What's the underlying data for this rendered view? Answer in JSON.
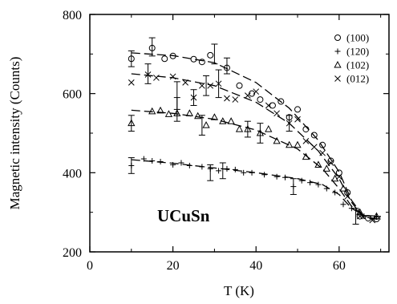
{
  "chart_data": {
    "type": "scatter",
    "title": "",
    "xlabel": "T (K)",
    "ylabel": "Magnetic intensity (Counts)",
    "xlim": [
      0,
      72
    ],
    "ylim": [
      200,
      800
    ],
    "xticks": [
      0,
      20,
      40,
      60
    ],
    "yticks": [
      200,
      400,
      600,
      800
    ],
    "grid": false,
    "legend_position": "top-right",
    "annotation": "UCuSn",
    "series": [
      {
        "name": "(100)",
        "marker": "circle",
        "points": [
          [
            10,
            688
          ],
          [
            15,
            715
          ],
          [
            18,
            688
          ],
          [
            20,
            695
          ],
          [
            25,
            687
          ],
          [
            27,
            680
          ],
          [
            29,
            697
          ],
          [
            33,
            665
          ],
          [
            36,
            620
          ],
          [
            39,
            600
          ],
          [
            41,
            585
          ],
          [
            44,
            570
          ],
          [
            46,
            580
          ],
          [
            48,
            540
          ],
          [
            50,
            560
          ],
          [
            52,
            510
          ],
          [
            54,
            495
          ],
          [
            56,
            470
          ],
          [
            58,
            430
          ],
          [
            60,
            400
          ],
          [
            62,
            350
          ],
          [
            65,
            290
          ],
          [
            67,
            285
          ],
          [
            69,
            283
          ]
        ],
        "fit": [
          [
            10,
            703
          ],
          [
            20,
            696
          ],
          [
            30,
            678
          ],
          [
            40,
            628
          ],
          [
            48,
            563
          ],
          [
            55,
            482
          ],
          [
            60,
            402
          ],
          [
            63,
            330
          ],
          [
            66,
            288
          ],
          [
            70,
            283
          ]
        ]
      },
      {
        "name": "(120)",
        "marker": "plus",
        "points": [
          [
            10,
            418
          ],
          [
            13,
            435
          ],
          [
            15,
            430
          ],
          [
            17,
            428
          ],
          [
            20,
            420
          ],
          [
            22,
            425
          ],
          [
            24,
            418
          ],
          [
            27,
            415
          ],
          [
            29,
            410
          ],
          [
            31,
            405
          ],
          [
            33,
            410
          ],
          [
            35,
            408
          ],
          [
            37,
            400
          ],
          [
            39,
            400
          ],
          [
            42,
            395
          ],
          [
            45,
            390
          ],
          [
            47,
            388
          ],
          [
            49,
            365
          ],
          [
            51,
            380
          ],
          [
            53,
            375
          ],
          [
            55,
            370
          ],
          [
            57,
            360
          ],
          [
            59,
            350
          ],
          [
            61,
            320
          ],
          [
            63,
            310
          ],
          [
            66,
            290
          ],
          [
            69,
            288
          ]
        ],
        "fit": [
          [
            10,
            433
          ],
          [
            20,
            424
          ],
          [
            30,
            412
          ],
          [
            40,
            400
          ],
          [
            50,
            385
          ],
          [
            56,
            370
          ],
          [
            60,
            345
          ],
          [
            63,
            310
          ],
          [
            66,
            292
          ],
          [
            70,
            288
          ]
        ]
      },
      {
        "name": "(102)",
        "marker": "triangle",
        "points": [
          [
            10,
            525
          ],
          [
            15,
            555
          ],
          [
            17,
            557
          ],
          [
            19,
            548
          ],
          [
            21,
            550
          ],
          [
            24,
            550
          ],
          [
            26,
            543
          ],
          [
            28,
            520
          ],
          [
            30,
            540
          ],
          [
            32,
            530
          ],
          [
            34,
            530
          ],
          [
            36,
            510
          ],
          [
            38,
            510
          ],
          [
            41,
            500
          ],
          [
            43,
            510
          ],
          [
            45,
            480
          ],
          [
            48,
            470
          ],
          [
            50,
            470
          ],
          [
            52,
            440
          ],
          [
            55,
            420
          ],
          [
            57,
            410
          ],
          [
            59,
            385
          ],
          [
            61,
            360
          ],
          [
            65,
            300
          ],
          [
            69,
            290
          ]
        ],
        "fit": [
          [
            10,
            558
          ],
          [
            20,
            550
          ],
          [
            30,
            535
          ],
          [
            40,
            508
          ],
          [
            50,
            460
          ],
          [
            56,
            410
          ],
          [
            60,
            360
          ],
          [
            63,
            315
          ],
          [
            66,
            292
          ],
          [
            70,
            290
          ]
        ]
      },
      {
        "name": "(012)",
        "marker": "cross",
        "points": [
          [
            10,
            628
          ],
          [
            14,
            648
          ],
          [
            16,
            640
          ],
          [
            20,
            643
          ],
          [
            23,
            628
          ],
          [
            25,
            590
          ],
          [
            27,
            620
          ],
          [
            29,
            620
          ],
          [
            31,
            625
          ],
          [
            33,
            588
          ],
          [
            35,
            585
          ],
          [
            38,
            595
          ],
          [
            40,
            605
          ],
          [
            43,
            570
          ],
          [
            45,
            550
          ],
          [
            48,
            525
          ],
          [
            50,
            535
          ],
          [
            52,
            480
          ],
          [
            54,
            465
          ],
          [
            56,
            450
          ],
          [
            58,
            425
          ],
          [
            60,
            390
          ],
          [
            62,
            340
          ],
          [
            65,
            290
          ],
          [
            68,
            280
          ]
        ],
        "fit": [
          [
            10,
            650
          ],
          [
            20,
            640
          ],
          [
            30,
            620
          ],
          [
            40,
            578
          ],
          [
            48,
            525
          ],
          [
            55,
            455
          ],
          [
            60,
            385
          ],
          [
            63,
            325
          ],
          [
            66,
            285
          ],
          [
            70,
            282
          ]
        ]
      }
    ],
    "error_bars": [
      {
        "series": "(100)",
        "x": 10,
        "y": 688,
        "err": 20
      },
      {
        "series": "(100)",
        "x": 15,
        "y": 718,
        "err": 23
      },
      {
        "series": "(100)",
        "x": 30,
        "y": 700,
        "err": 25
      },
      {
        "series": "(100)",
        "x": 33,
        "y": 670,
        "err": 20
      },
      {
        "series": "(012)",
        "x": 14,
        "y": 650,
        "err": 25
      },
      {
        "series": "(012)",
        "x": 21,
        "y": 595,
        "err": 35
      },
      {
        "series": "(012)",
        "x": 25,
        "y": 590,
        "err": 20
      },
      {
        "series": "(012)",
        "x": 28,
        "y": 620,
        "err": 25
      },
      {
        "series": "(012)",
        "x": 31,
        "y": 625,
        "err": 35
      },
      {
        "series": "(012)",
        "x": 48,
        "y": 525,
        "err": 20
      },
      {
        "series": "(102)",
        "x": 10,
        "y": 525,
        "err": 20
      },
      {
        "series": "(102)",
        "x": 21,
        "y": 560,
        "err": 30
      },
      {
        "series": "(102)",
        "x": 27,
        "y": 520,
        "err": 25
      },
      {
        "series": "(102)",
        "x": 38,
        "y": 510,
        "err": 20
      },
      {
        "series": "(102)",
        "x": 41,
        "y": 500,
        "err": 25
      },
      {
        "series": "(120)",
        "x": 10,
        "y": 418,
        "err": 20
      },
      {
        "series": "(120)",
        "x": 29,
        "y": 400,
        "err": 20
      },
      {
        "series": "(120)",
        "x": 32,
        "y": 405,
        "err": 20
      },
      {
        "series": "(120)",
        "x": 49,
        "y": 365,
        "err": 20
      },
      {
        "series": "(012)",
        "x": 64,
        "y": 290,
        "err": 20
      }
    ]
  }
}
